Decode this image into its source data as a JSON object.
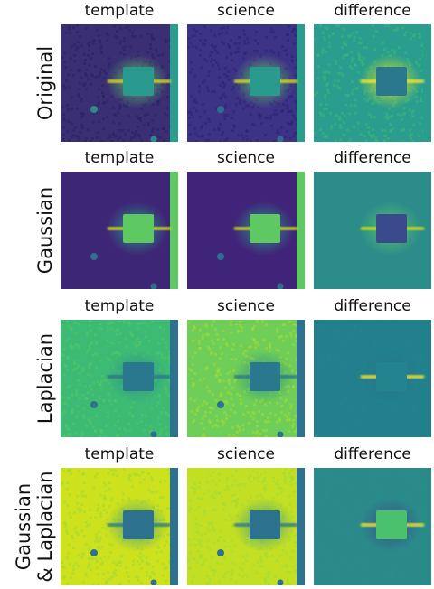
{
  "figure": {
    "rows": [
      {
        "label_lines": [
          "Original"
        ],
        "panels": [
          {
            "title": "template",
            "bg": "#3b2f74",
            "noise": "#2c1f6a",
            "stripe": "#2a9d8f",
            "box": "#2a9a8e",
            "halo": "#5ec962",
            "flare": "#d8e219",
            "dot": "#2e8a8a"
          },
          {
            "title": "science",
            "bg": "#3d3386",
            "noise": "#2c2275",
            "stripe": "#2a9d8f",
            "box": "#2a9a8e",
            "halo": "#5ec962",
            "flare": "#d8e219",
            "dot": "#2e6f8e"
          },
          {
            "title": "difference",
            "bg": "#2a9d8f",
            "noise": "#35b779",
            "stripe": "#2a9d8f",
            "box": "#2a788e",
            "halo": "#e3e418",
            "flare": "#fde725",
            "dot": "#2a9d8f"
          }
        ]
      },
      {
        "label_lines": [
          "Gaussian"
        ],
        "panels": [
          {
            "title": "template",
            "bg": "#3e2676",
            "noise": "#3e2676",
            "stripe": "#5ec962",
            "box": "#5ec962",
            "halo": "#2a9d8f",
            "flare": "#d8e219",
            "dot": "#2e6f8e"
          },
          {
            "title": "science",
            "bg": "#402479",
            "noise": "#402479",
            "stripe": "#5ec962",
            "box": "#5ec962",
            "halo": "#2a9d8f",
            "flare": "#d8e219",
            "dot": "#2e6f8e"
          },
          {
            "title": "difference",
            "bg": "#2c8c8a",
            "noise": "#2c8c8a",
            "stripe": "#2c8c8a",
            "box": "#3b4a8c",
            "halo": "#5ec962",
            "flare": "#d8e219",
            "dot": "#2c8c8a"
          }
        ]
      },
      {
        "label_lines": [
          "Laplacian"
        ],
        "panels": [
          {
            "title": "template",
            "bg": "#3dbb74",
            "noise": "#52c569",
            "stripe": "#2c728e",
            "box": "#2a788e",
            "halo": "#2c8c8a",
            "flare": "#2c728e",
            "dot": "#2c728e"
          },
          {
            "title": "science",
            "bg": "#6ece58",
            "noise": "#a0da39",
            "stripe": "#2c728e",
            "box": "#2a788e",
            "halo": "#2c8c8a",
            "flare": "#2c728e",
            "dot": "#2c728e"
          },
          {
            "title": "difference",
            "bg": "#21808c",
            "noise": "#26828e",
            "stripe": "#21808c",
            "box": "#23838e",
            "halo": "#2c728e",
            "flare": "#fde725",
            "dot": "#21808c"
          }
        ]
      },
      {
        "label_lines": [
          "Gaussian",
          "& Laplacian"
        ],
        "panels": [
          {
            "title": "template",
            "bg": "#cde11d",
            "noise": "#a5db36",
            "stripe": "#2c728e",
            "box": "#2c728e",
            "halo": "#3b9a8e",
            "flare": "#2c728e",
            "dot": "#2c728e"
          },
          {
            "title": "science",
            "bg": "#c2df23",
            "noise": "#a5db36",
            "stripe": "#2c728e",
            "box": "#2c728e",
            "halo": "#3b9a8e",
            "flare": "#2c728e",
            "dot": "#2c728e"
          },
          {
            "title": "difference",
            "bg": "#2a8a8a",
            "noise": "#2c8c8a",
            "stripe": "#2a8a8a",
            "box": "#4ac16d",
            "halo": "#3b4a8c",
            "flare": "#fde725",
            "dot": "#2a8a8a"
          }
        ]
      }
    ]
  }
}
